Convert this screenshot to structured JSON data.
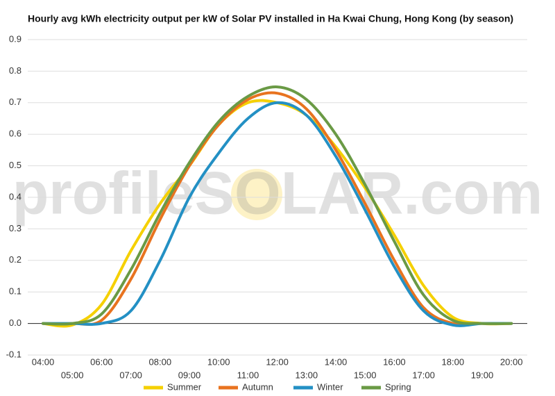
{
  "chart_data": {
    "type": "line",
    "title": "Hourly avg kWh electricity output per kW of Solar PV installed in Ha Kwai Chung, Hong Kong (by season)",
    "watermark": "profileSOLAR.com",
    "categories": [
      "04:00",
      "05:00",
      "06:00",
      "07:00",
      "08:00",
      "09:00",
      "10:00",
      "11:00",
      "12:00",
      "13:00",
      "14:00",
      "15:00",
      "16:00",
      "17:00",
      "18:00",
      "19:00",
      "20:00"
    ],
    "series": [
      {
        "name": "Summer",
        "color": "#f5d000",
        "values": [
          0,
          -0.005,
          0.06,
          0.23,
          0.38,
          0.5,
          0.63,
          0.7,
          0.7,
          0.66,
          0.56,
          0.43,
          0.28,
          0.12,
          0.02,
          0,
          0
        ]
      },
      {
        "name": "Autumn",
        "color": "#e8731f",
        "values": [
          0,
          0,
          0.01,
          0.14,
          0.33,
          0.5,
          0.63,
          0.71,
          0.73,
          0.68,
          0.55,
          0.38,
          0.2,
          0.05,
          0,
          0,
          0
        ]
      },
      {
        "name": "Winter",
        "color": "#2390c4",
        "values": [
          0,
          0,
          0,
          0.04,
          0.2,
          0.4,
          0.54,
          0.65,
          0.7,
          0.66,
          0.53,
          0.36,
          0.18,
          0.04,
          -0.005,
          0,
          0
        ]
      },
      {
        "name": "Spring",
        "color": "#6a9a45",
        "values": [
          0,
          0,
          0.03,
          0.17,
          0.35,
          0.51,
          0.64,
          0.72,
          0.75,
          0.71,
          0.6,
          0.44,
          0.26,
          0.09,
          0.01,
          0,
          0
        ]
      }
    ],
    "ylim": [
      -0.1,
      0.9
    ],
    "yticks": [
      -0.1,
      {
        "value": 0,
        "label": "0.0"
      },
      0.1,
      0.2,
      0.3,
      0.4,
      0.5,
      0.6,
      0.7,
      0.8,
      0.9
    ],
    "grid": true
  }
}
